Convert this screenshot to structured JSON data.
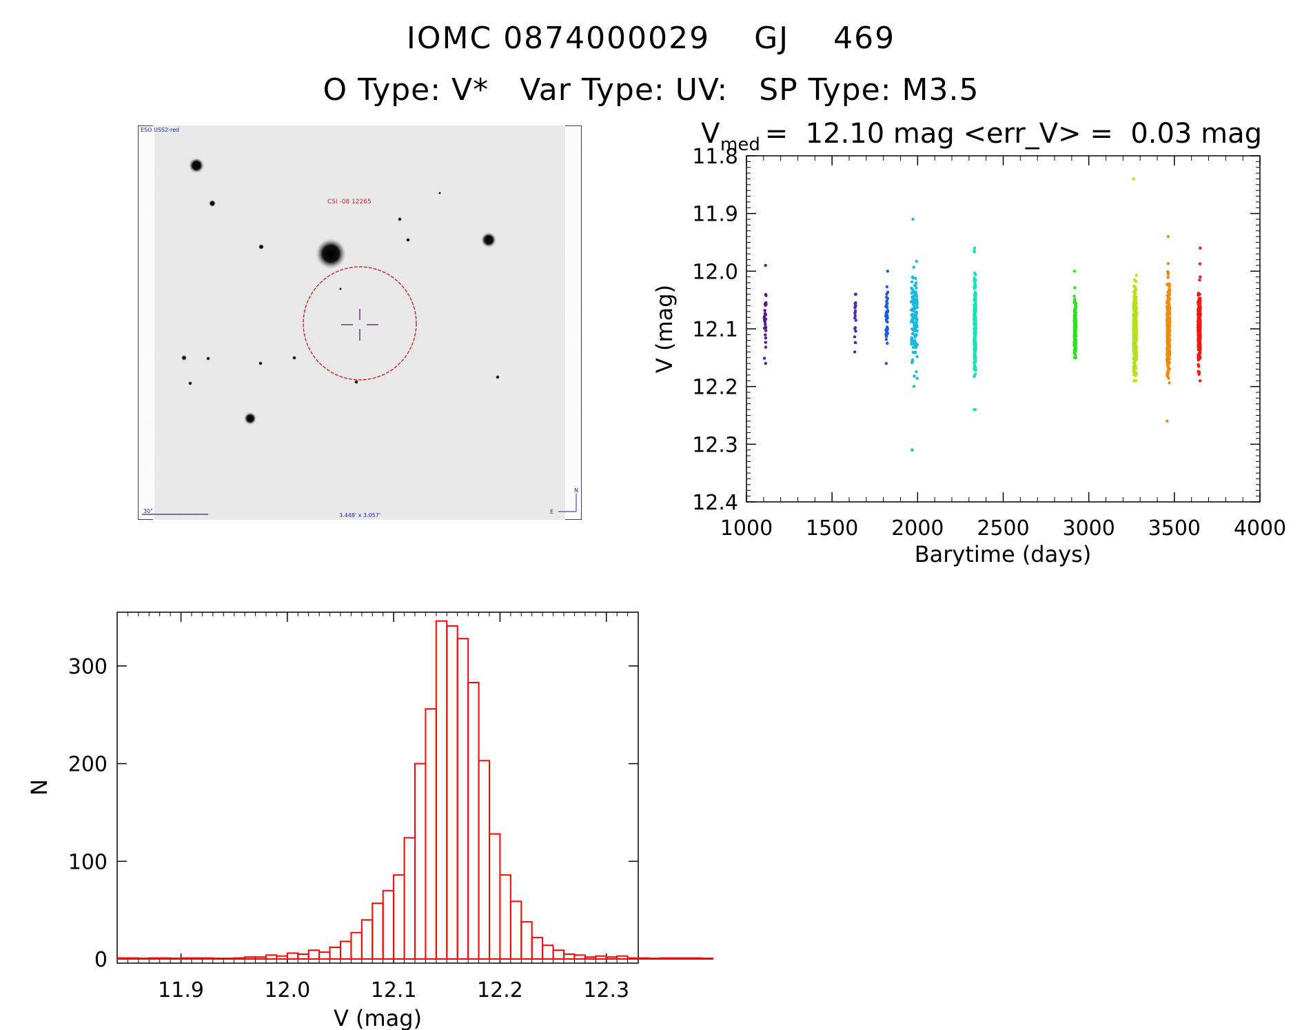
{
  "header": {
    "line1": "IOMC 0874000029    GJ    469",
    "line2": "O Type: V*   Var Type: UV:   SP Type: M3.5"
  },
  "finder": {
    "survey_label": "ESO USS2-red",
    "target_label": "CSI -08 12265",
    "scale_label": "30\"",
    "fov_label": "3.448' x 3.057'",
    "compass_n": "N",
    "compass_e": "E",
    "target_circle_color": "#c0262d",
    "annotation_color": "#1a2a9a"
  },
  "chart_data": [
    {
      "type": "scatter",
      "title_main": "V",
      "title_sub": "med",
      "title_rest": " =  12.10 mag <err_V> =  0.03 mag",
      "xlabel": "Barytime (days)",
      "ylabel": "V (mag)",
      "xlim": [
        1000,
        4000
      ],
      "ylim": [
        11.8,
        12.4
      ],
      "y_inverted": true,
      "xticks": [
        1000,
        1500,
        2000,
        2500,
        3000,
        3500,
        4000
      ],
      "yticks": [
        "11.8",
        "11.9",
        "12.0",
        "12.1",
        "12.2",
        "12.3",
        "12.4"
      ],
      "groups": [
        {
          "x": 1110,
          "spread": 6,
          "center": 12.09,
          "sd": 0.03,
          "n": 35,
          "min": 11.99,
          "max": 12.16,
          "color": "#5a1a8a"
        },
        {
          "x": 1635,
          "spread": 4,
          "center": 12.08,
          "sd": 0.03,
          "n": 22,
          "min": 12.04,
          "max": 12.14,
          "color": "#4a2ab0"
        },
        {
          "x": 1820,
          "spread": 6,
          "center": 12.08,
          "sd": 0.03,
          "n": 45,
          "min": 12.0,
          "max": 12.16,
          "color": "#1a5ae0"
        },
        {
          "x": 1980,
          "spread": 18,
          "center": 12.08,
          "sd": 0.04,
          "n": 140,
          "min": 11.91,
          "max": 12.31,
          "color": "#1ab8e0"
        },
        {
          "x": 2335,
          "spread": 5,
          "center": 12.1,
          "sd": 0.04,
          "n": 200,
          "min": 11.96,
          "max": 12.24,
          "color": "#1ae0b8"
        },
        {
          "x": 2920,
          "spread": 5,
          "center": 12.1,
          "sd": 0.025,
          "n": 200,
          "min": 12.0,
          "max": 12.15,
          "color": "#2ae020"
        },
        {
          "x": 3270,
          "spread": 9,
          "center": 12.1,
          "sd": 0.04,
          "n": 300,
          "min": 11.84,
          "max": 12.19,
          "color": "#b8e01a"
        },
        {
          "x": 3465,
          "spread": 8,
          "center": 12.1,
          "sd": 0.04,
          "n": 300,
          "min": 11.94,
          "max": 12.26,
          "color": "#f08a10"
        },
        {
          "x": 3645,
          "spread": 7,
          "center": 12.1,
          "sd": 0.03,
          "n": 260,
          "min": 11.96,
          "max": 12.19,
          "color": "#f01a10"
        }
      ]
    },
    {
      "type": "bar",
      "style": "histogram-outline",
      "xlabel": "V (mag)",
      "ylabel": "N",
      "xlim": [
        11.84,
        12.33
      ],
      "ylim": [
        0,
        355
      ],
      "xticks": [
        "11.9",
        "12.0",
        "12.1",
        "12.2",
        "12.3"
      ],
      "yticks": [
        "0",
        "100",
        "200",
        "300"
      ],
      "bin_start": 11.84,
      "bin_width": 0.01,
      "counts": [
        1,
        1,
        0,
        1,
        1,
        0,
        1,
        1,
        1,
        0,
        0,
        1,
        2,
        2,
        4,
        3,
        6,
        5,
        9,
        7,
        12,
        18,
        27,
        40,
        57,
        70,
        86,
        124,
        200,
        256,
        346,
        341,
        328,
        283,
        203,
        128,
        86,
        59,
        38,
        22,
        14,
        9,
        5,
        4,
        2,
        3,
        2,
        3,
        1,
        1,
        0,
        1,
        1,
        1,
        1,
        0
      ],
      "bar_color": "#ff0000"
    }
  ]
}
